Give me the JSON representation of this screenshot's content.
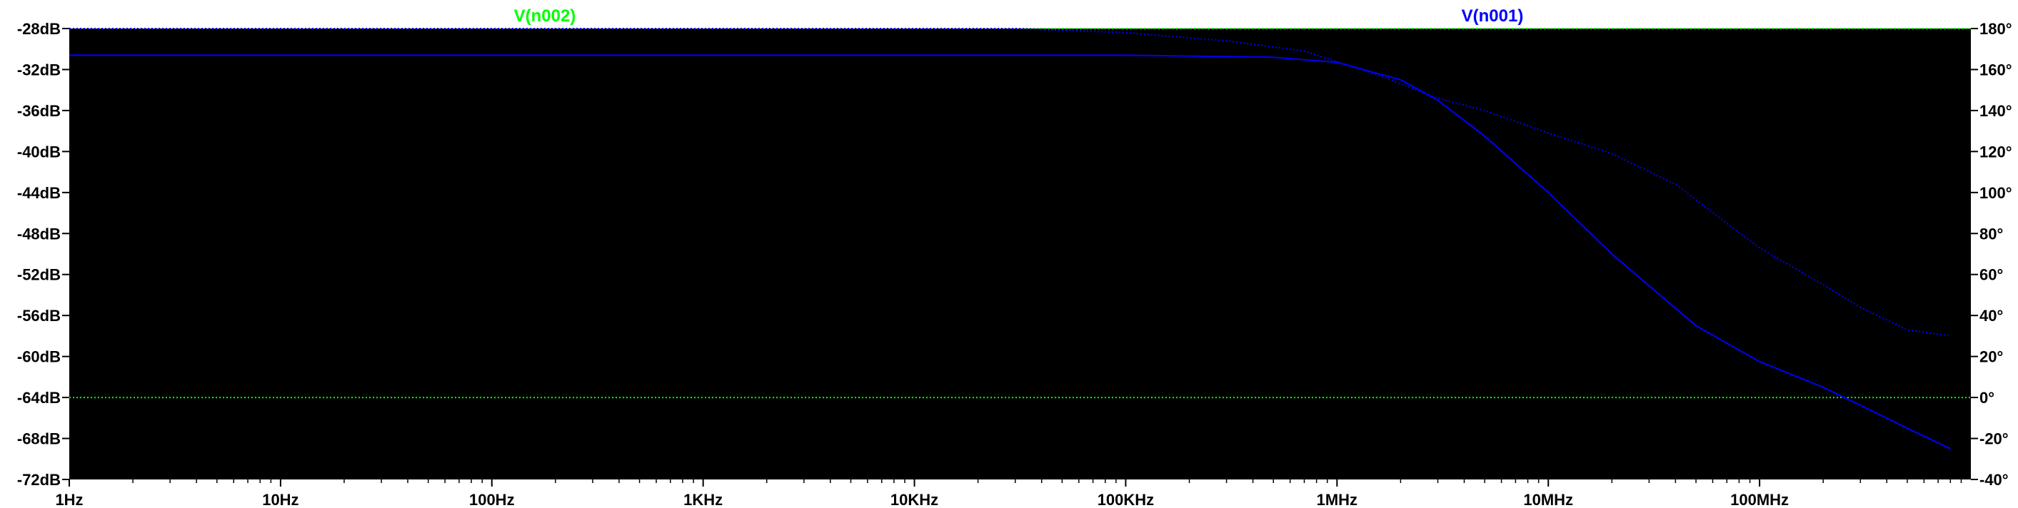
{
  "chart_data": {
    "type": "line",
    "x_scale": "log",
    "x_range": [
      "1Hz",
      "1GHz"
    ],
    "x_ticks": [
      {
        "value": 1,
        "label": "1Hz"
      },
      {
        "value": 10,
        "label": "10Hz"
      },
      {
        "value": 100,
        "label": "100Hz"
      },
      {
        "value": 1000,
        "label": "1KHz"
      },
      {
        "value": 10000,
        "label": "10KHz"
      },
      {
        "value": 100000,
        "label": "100KHz"
      },
      {
        "value": 1000000,
        "label": "1MHz"
      },
      {
        "value": 10000000,
        "label": "10MHz"
      },
      {
        "value": 100000000,
        "label": "100MHz"
      }
    ],
    "y_left": {
      "unit": "dB",
      "range": [
        -72,
        -28
      ],
      "ticks": [
        {
          "value": -28,
          "label": "-28dB"
        },
        {
          "value": -32,
          "label": "-32dB"
        },
        {
          "value": -36,
          "label": "-36dB"
        },
        {
          "value": -40,
          "label": "-40dB"
        },
        {
          "value": -44,
          "label": "-44dB"
        },
        {
          "value": -48,
          "label": "-48dB"
        },
        {
          "value": -52,
          "label": "-52dB"
        },
        {
          "value": -56,
          "label": "-56dB"
        },
        {
          "value": -60,
          "label": "-60dB"
        },
        {
          "value": -64,
          "label": "-64dB"
        },
        {
          "value": -68,
          "label": "-68dB"
        },
        {
          "value": -72,
          "label": "-72dB"
        }
      ]
    },
    "y_right": {
      "unit": "degrees",
      "range": [
        -40,
        180
      ],
      "ticks": [
        {
          "value": 180,
          "label": "180°"
        },
        {
          "value": 160,
          "label": "160°"
        },
        {
          "value": 140,
          "label": "140°"
        },
        {
          "value": 120,
          "label": "120°"
        },
        {
          "value": 100,
          "label": "100°"
        },
        {
          "value": 80,
          "label": "80°"
        },
        {
          "value": 60,
          "label": "60°"
        },
        {
          "value": 40,
          "label": "40°"
        },
        {
          "value": 20,
          "label": "20°"
        },
        {
          "value": 0,
          "label": "0°"
        },
        {
          "value": -20,
          "label": "-20°"
        },
        {
          "value": -40,
          "label": "-40°"
        }
      ]
    },
    "grid": false,
    "series": [
      {
        "name": "V(n002)",
        "color": "#00ff00",
        "magnitude_db": [
          [
            1,
            -64
          ],
          [
            1000000000,
            -64
          ]
        ],
        "phase_deg": [
          [
            1,
            180
          ],
          [
            1000000000,
            180
          ]
        ]
      },
      {
        "name": "V(n001)",
        "color": "#0000ff",
        "magnitude_db": [
          [
            1,
            -30.6
          ],
          [
            100000,
            -30.6
          ],
          [
            500000,
            -30.8
          ],
          [
            1000000,
            -31.3
          ],
          [
            2000000,
            -33
          ],
          [
            3000000,
            -35
          ],
          [
            5000000,
            -38.5
          ],
          [
            10000000,
            -44
          ],
          [
            20000000,
            -50
          ],
          [
            50000000,
            -57
          ],
          [
            100000000,
            -60.5
          ],
          [
            200000000,
            -63
          ],
          [
            500000000,
            -67
          ],
          [
            800000000,
            -69
          ]
        ],
        "phase_deg": [
          [
            1,
            180
          ],
          [
            30000,
            180
          ],
          [
            100000,
            178
          ],
          [
            300000,
            174
          ],
          [
            700000,
            169
          ],
          [
            1500000,
            158
          ],
          [
            3000000,
            146
          ],
          [
            5000000,
            140
          ],
          [
            10000000,
            129
          ],
          [
            20000000,
            119
          ],
          [
            40000000,
            104
          ],
          [
            70000000,
            85
          ],
          [
            100000000,
            73
          ],
          [
            200000000,
            55
          ],
          [
            300000000,
            44
          ],
          [
            500000000,
            33
          ],
          [
            800000000,
            30
          ]
        ]
      }
    ]
  }
}
